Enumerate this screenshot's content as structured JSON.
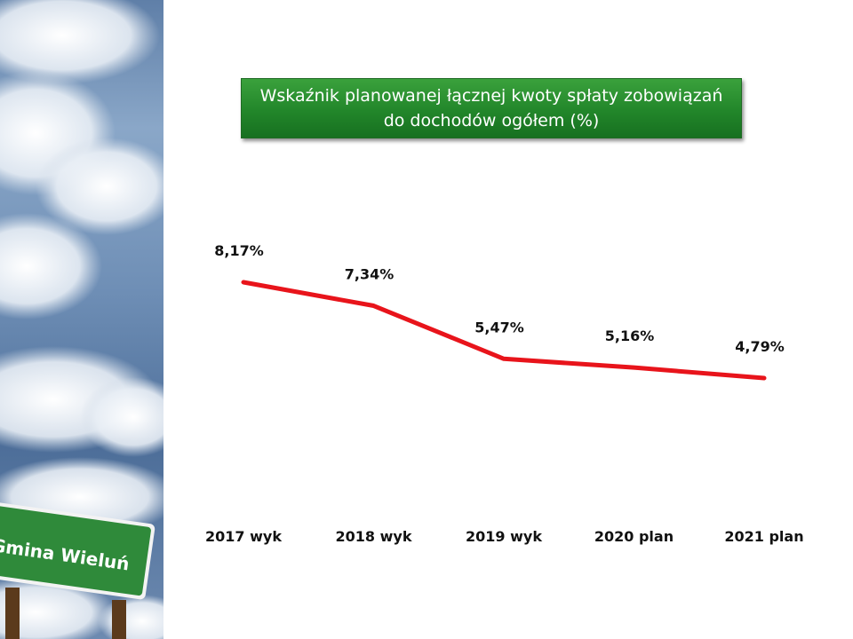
{
  "sign": {
    "text": "Gmina Wieluń"
  },
  "colors": {
    "line": "#e8141b",
    "title_bg": "#2a8c2e",
    "title_text": "#ffffff",
    "sign_bg": "#2f8a3a"
  },
  "title": {
    "line1": "Wskaźnik planowanej łącznej kwoty spłaty zobowiązań",
    "line2": "do dochodów ogółem (%)"
  },
  "chart_data": {
    "type": "line",
    "categories": [
      "2017 wyk",
      "2018 wyk",
      "2019 wyk",
      "2020 plan",
      "2021 plan"
    ],
    "values": [
      8.17,
      7.34,
      5.47,
      5.16,
      4.79
    ],
    "labels": [
      "8,17%",
      "7,34%",
      "5,47%",
      "5,16%",
      "4,79%"
    ],
    "title": "Wskaźnik planowanej łącznej kwoty spłaty zobowiązań do dochodów ogółem (%)",
    "xlabel": "",
    "ylabel": "",
    "ylim": [
      0,
      10
    ],
    "grid": false,
    "legend": "none"
  }
}
